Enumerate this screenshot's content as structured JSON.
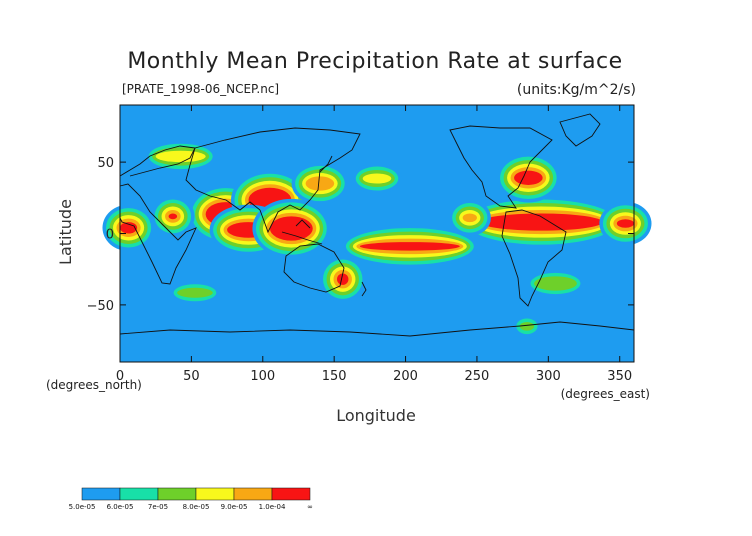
{
  "chart_data": {
    "type": "heatmap",
    "title": "Monthly Mean Precipitation Rate at surface",
    "file_label": "[PRATE_1998-06_NCEP.nc]",
    "units_label": "(units:Kg/m^2/s)",
    "xlabel": "Longitude",
    "ylabel": "Latitude",
    "x_unit_label": "(degrees_east)",
    "y_unit_label": "(degrees_north)",
    "xlim": [
      0,
      360
    ],
    "ylim": [
      -90,
      90
    ],
    "x_ticks": [
      0,
      50,
      100,
      150,
      200,
      250,
      300,
      350
    ],
    "y_ticks": [
      50,
      0,
      -50
    ],
    "x_tick_labels": [
      "0",
      "50",
      "100",
      "150",
      "200",
      "250",
      "300",
      "350"
    ],
    "y_tick_labels": [
      "50",
      "0",
      "−50"
    ],
    "background_level": "5.0e-05",
    "colorbar": {
      "labels": [
        "5.0e-05",
        "6.0e-05",
        "7e-05",
        "8.0e-05",
        "9.0e-05",
        "1.0e-04",
        "∞"
      ],
      "colors": [
        "#1e9cf0",
        "#18e0a8",
        "#6ed02a",
        "#f8f81c",
        "#f8a814",
        "#f81414"
      ]
    },
    "regions": [
      {
        "level": 6,
        "lon": [
          60,
          88
        ],
        "lat": [
          5,
          22
        ]
      },
      {
        "level": 6,
        "lon": [
          90,
          120
        ],
        "lat": [
          15,
          32
        ]
      },
      {
        "level": 6,
        "lon": [
          75,
          105
        ],
        "lat": [
          -3,
          8
        ]
      },
      {
        "level": 6,
        "lon": [
          105,
          135
        ],
        "lat": [
          -5,
          12
        ]
      },
      {
        "level": 6,
        "lon": [
          168,
          238
        ],
        "lat": [
          -12,
          -6
        ]
      },
      {
        "level": 6,
        "lon": [
          252,
          338
        ],
        "lat": [
          2,
          14
        ]
      },
      {
        "level": 6,
        "lon": [
          276,
          296
        ],
        "lat": [
          34,
          44
        ]
      },
      {
        "level": 6,
        "lon": [
          348,
          360
        ],
        "lat": [
          4,
          10
        ]
      },
      {
        "level": 6,
        "lon": [
          152,
          160
        ],
        "lat": [
          -36,
          -28
        ]
      },
      {
        "level": 6,
        "lon": [
          0,
          12
        ],
        "lat": [
          0,
          8
        ]
      },
      {
        "level": 6,
        "lon": [
          34,
          40
        ],
        "lat": [
          10,
          14
        ]
      },
      {
        "level": 5,
        "lon": [
          130,
          150
        ],
        "lat": [
          30,
          40
        ]
      },
      {
        "level": 5,
        "lon": [
          240,
          250
        ],
        "lat": [
          8,
          14
        ]
      },
      {
        "level": 4,
        "lon": [
          170,
          190
        ],
        "lat": [
          35,
          42
        ]
      },
      {
        "level": 4,
        "lon": [
          25,
          60
        ],
        "lat": [
          50,
          58
        ]
      },
      {
        "level": 3,
        "lon": [
          290,
          320
        ],
        "lat": [
          -40,
          -30
        ]
      },
      {
        "level": 3,
        "lon": [
          40,
          65
        ],
        "lat": [
          -45,
          -38
        ]
      },
      {
        "level": 3,
        "lon": [
          280,
          290
        ],
        "lat": [
          -68,
          -62
        ]
      }
    ]
  }
}
